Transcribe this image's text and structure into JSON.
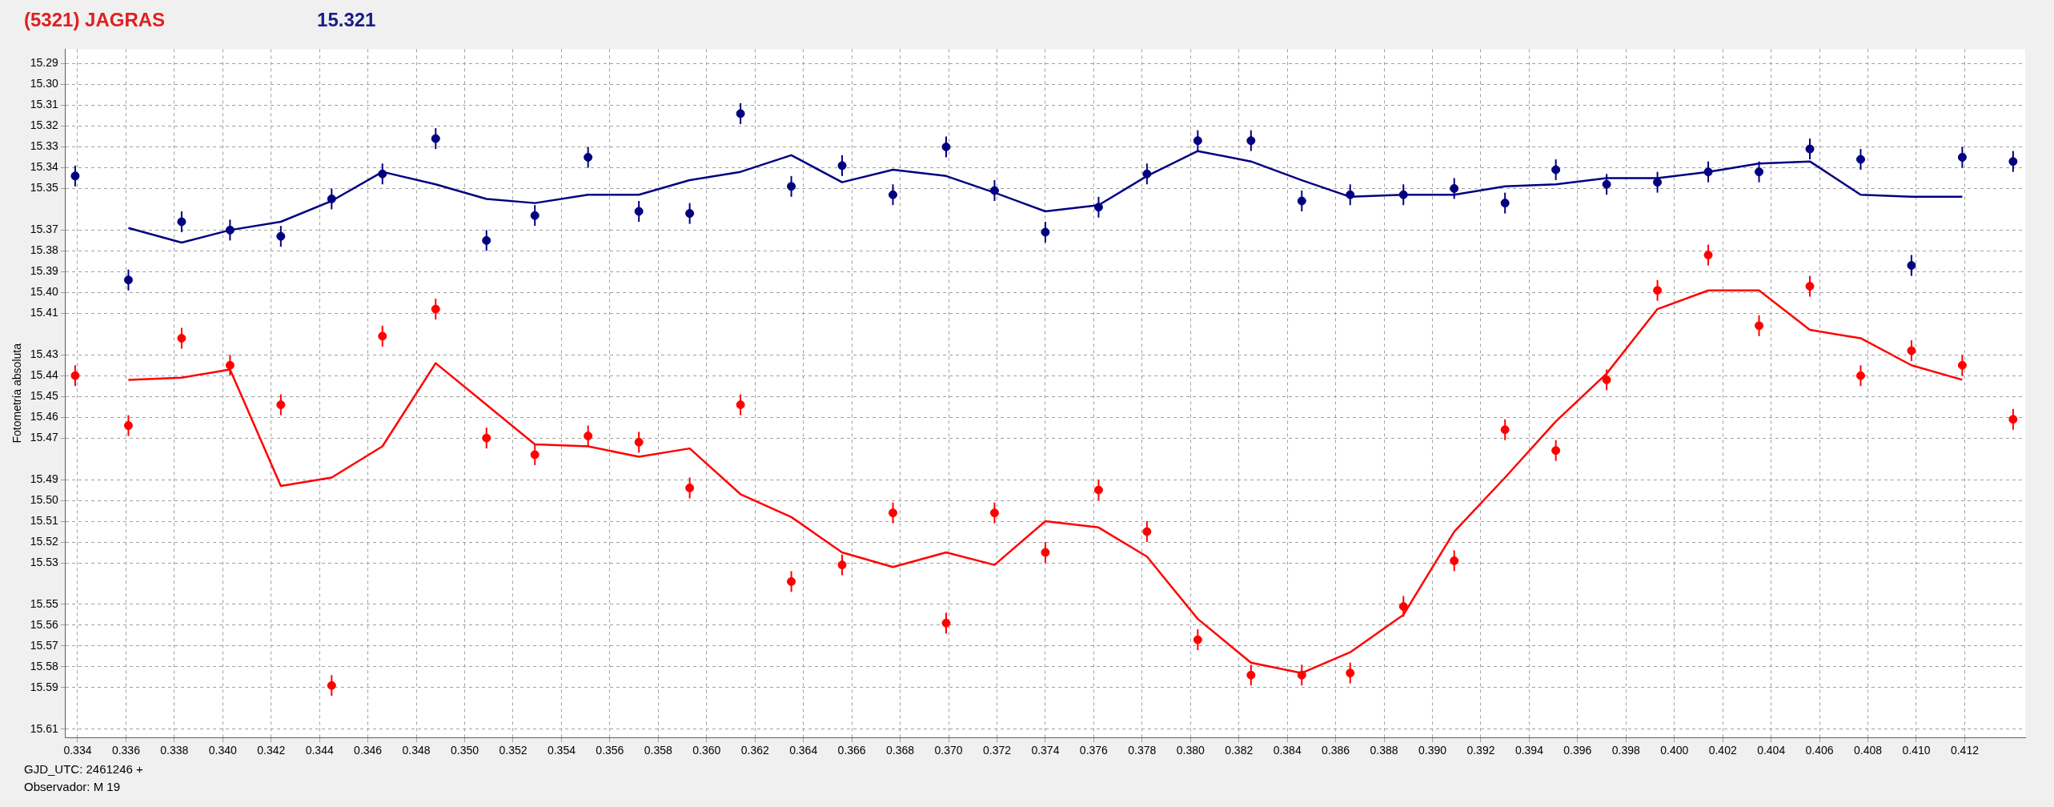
{
  "chart_data": {
    "type": "scatter",
    "title": "(5321) JAGRAS",
    "subtitle": "15.321",
    "ylabel": "Fotometría absoluta",
    "annotations": [
      "GJD_UTC: 2461246 +",
      "Observador: M 19"
    ],
    "xlim": [
      0.3335,
      0.4145
    ],
    "xticks": [
      0.334,
      0.336,
      0.338,
      {
        "value": 0.34,
        "label": "0.340"
      },
      0.342,
      0.344,
      0.346,
      0.348,
      {
        "value": 0.35,
        "label": "0.350"
      },
      0.352,
      0.354,
      0.356,
      0.358,
      {
        "value": 0.36,
        "label": "0.360"
      },
      0.362,
      0.364,
      0.366,
      0.368,
      {
        "value": 0.37,
        "label": "0.370"
      },
      0.372,
      0.374,
      0.376,
      0.378,
      {
        "value": 0.38,
        "label": "0.380"
      },
      0.382,
      0.384,
      0.386,
      0.388,
      {
        "value": 0.39,
        "label": "0.390"
      },
      0.392,
      0.394,
      0.396,
      0.398,
      {
        "value": 0.4,
        "label": "0.400"
      },
      0.402,
      0.404,
      0.406,
      0.408,
      {
        "value": 0.41,
        "label": "0.410"
      },
      0.412
    ],
    "ylim": [
      15.614,
      15.283
    ],
    "yticks": [
      15.29,
      {
        "value": 15.3,
        "label": "15.30"
      },
      15.31,
      15.32,
      15.33,
      15.34,
      15.35,
      15.37,
      15.38,
      15.39,
      {
        "value": 15.4,
        "label": "15.40"
      },
      15.41,
      15.43,
      15.44,
      15.45,
      15.46,
      15.47,
      15.49,
      {
        "value": 15.5,
        "label": "15.50"
      },
      15.51,
      15.52,
      15.53,
      15.55,
      15.56,
      15.57,
      15.58,
      15.59,
      15.61
    ],
    "grid": true,
    "series": [
      {
        "type": "scatter",
        "color": "#000080",
        "marker": "circle",
        "x": [
          0.3339,
          0.3361,
          0.3383,
          0.3403,
          0.3424,
          0.3445,
          0.3466,
          0.3488,
          0.3509,
          0.3529,
          0.3551,
          0.3572,
          0.3593,
          0.3614,
          0.3635,
          0.3656,
          0.3677,
          0.3699,
          0.3719,
          0.374,
          0.3762,
          0.3782,
          0.3803,
          0.3825,
          0.3846,
          0.3866,
          0.3888,
          0.3909,
          0.393,
          0.3951,
          0.3972,
          0.3993,
          0.4014,
          0.4035,
          0.4056,
          0.4077,
          0.4098,
          0.4119,
          0.414
        ],
        "values": [
          15.344,
          15.394,
          15.366,
          15.37,
          15.373,
          15.355,
          15.343,
          15.326,
          15.375,
          15.363,
          15.335,
          15.361,
          15.362,
          15.314,
          15.349,
          15.339,
          15.353,
          15.33,
          15.351,
          15.371,
          15.359,
          15.343,
          15.327,
          15.327,
          15.356,
          15.353,
          15.353,
          15.35,
          15.357,
          15.341,
          15.348,
          15.347,
          15.342,
          15.342,
          15.331,
          15.336,
          15.387,
          15.335,
          15.337
        ],
        "errors": [
          0.005,
          0.005,
          0.005,
          0.005,
          0.005,
          0.005,
          0.005,
          0.005,
          0.005,
          0.005,
          0.005,
          0.005,
          0.005,
          0.005,
          0.005,
          0.005,
          0.005,
          0.005,
          0.005,
          0.005,
          0.005,
          0.005,
          0.005,
          0.005,
          0.005,
          0.005,
          0.005,
          0.005,
          0.005,
          0.005,
          0.005,
          0.005,
          0.005,
          0.005,
          0.005,
          0.005,
          0.005,
          0.005,
          0.005
        ]
      },
      {
        "type": "line",
        "color": "#000080",
        "marker": "none",
        "x": [
          0.3361,
          0.3383,
          0.3403,
          0.3424,
          0.3445,
          0.3466,
          0.3488,
          0.3509,
          0.3529,
          0.3551,
          0.3572,
          0.3593,
          0.3614,
          0.3635,
          0.3656,
          0.3677,
          0.3699,
          0.3719,
          0.374,
          0.3762,
          0.3782,
          0.3803,
          0.3825,
          0.3846,
          0.3866,
          0.3888,
          0.3909,
          0.393,
          0.3951,
          0.3972,
          0.3993,
          0.4014,
          0.4035,
          0.4056,
          0.4077,
          0.4098,
          0.4119
        ],
        "values": [
          15.369,
          15.376,
          15.37,
          15.366,
          15.356,
          15.342,
          15.348,
          15.355,
          15.357,
          15.353,
          15.353,
          15.346,
          15.342,
          15.334,
          15.347,
          15.341,
          15.344,
          15.352,
          15.361,
          15.358,
          15.344,
          15.332,
          15.337,
          15.346,
          15.354,
          15.353,
          15.353,
          15.349,
          15.348,
          15.345,
          15.345,
          15.342,
          15.338,
          15.337,
          15.353,
          15.354,
          15.354
        ]
      },
      {
        "type": "scatter",
        "color": "#ff0000",
        "marker": "circle",
        "x": [
          0.3339,
          0.3361,
          0.3383,
          0.3403,
          0.3424,
          0.3445,
          0.3466,
          0.3488,
          0.3509,
          0.3529,
          0.3551,
          0.3572,
          0.3593,
          0.3614,
          0.3635,
          0.3656,
          0.3677,
          0.3699,
          0.3719,
          0.374,
          0.3762,
          0.3782,
          0.3803,
          0.3825,
          0.3846,
          0.3866,
          0.3888,
          0.3909,
          0.393,
          0.3951,
          0.3972,
          0.3993,
          0.4014,
          0.4035,
          0.4056,
          0.4077,
          0.4098,
          0.4119,
          0.414
        ],
        "values": [
          15.44,
          15.464,
          15.422,
          15.435,
          15.454,
          15.589,
          15.421,
          15.408,
          15.47,
          15.478,
          15.469,
          15.472,
          15.494,
          15.454,
          15.539,
          15.531,
          15.506,
          15.559,
          15.506,
          15.525,
          15.495,
          15.515,
          15.567,
          15.584,
          15.584,
          15.583,
          15.551,
          15.529,
          15.466,
          15.476,
          15.442,
          15.399,
          15.382,
          15.416,
          15.397,
          15.44,
          15.428,
          15.435,
          15.461
        ],
        "errors": [
          0.005,
          0.005,
          0.005,
          0.005,
          0.005,
          0.005,
          0.005,
          0.005,
          0.005,
          0.005,
          0.005,
          0.005,
          0.005,
          0.005,
          0.005,
          0.005,
          0.005,
          0.005,
          0.005,
          0.005,
          0.005,
          0.005,
          0.005,
          0.005,
          0.005,
          0.005,
          0.005,
          0.005,
          0.005,
          0.005,
          0.005,
          0.005,
          0.005,
          0.005,
          0.005,
          0.005,
          0.005,
          0.005,
          0.005
        ]
      },
      {
        "type": "line",
        "color": "#ff0000",
        "marker": "none",
        "x": [
          0.3361,
          0.3383,
          0.3403,
          0.3424,
          0.3445,
          0.3466,
          0.3488,
          0.3509,
          0.3529,
          0.3551,
          0.3572,
          0.3593,
          0.3614,
          0.3635,
          0.3656,
          0.3677,
          0.3699,
          0.3719,
          0.374,
          0.3762,
          0.3782,
          0.3803,
          0.3825,
          0.3846,
          0.3866,
          0.3888,
          0.3909,
          0.393,
          0.3951,
          0.3972,
          0.3993,
          0.4014,
          0.4035,
          0.4056,
          0.4077,
          0.4098,
          0.4119
        ],
        "values": [
          15.442,
          15.441,
          15.437,
          15.493,
          15.489,
          15.474,
          15.434,
          15.454,
          15.473,
          15.474,
          15.479,
          15.475,
          15.497,
          15.508,
          15.525,
          15.532,
          15.525,
          15.531,
          15.51,
          15.513,
          15.527,
          15.557,
          15.578,
          15.583,
          15.573,
          15.555,
          15.515,
          15.489,
          15.462,
          15.439,
          15.408,
          15.399,
          15.399,
          15.418,
          15.422,
          15.435,
          15.442
        ]
      }
    ]
  }
}
